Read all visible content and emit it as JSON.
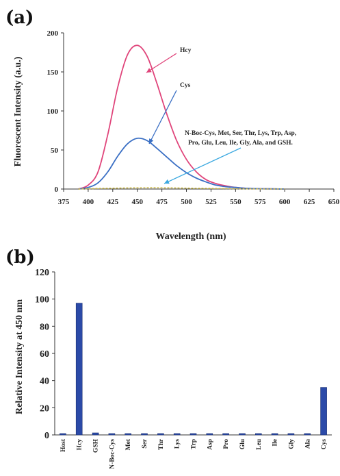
{
  "chart_data": [
    {
      "panel": "(a)",
      "type": "line",
      "xlabel": "Wavelength (nm)",
      "ylabel": "Fluorescent Intensity (a.u.)",
      "xlim": [
        375,
        650
      ],
      "ylim": [
        0,
        200
      ],
      "xticks": [
        "375",
        "400",
        "425",
        "450",
        "475",
        "500",
        "525",
        "550",
        "575",
        "600",
        "625",
        "650"
      ],
      "yticks": [
        "0",
        "50",
        "100",
        "150",
        "200"
      ],
      "series": [
        {
          "name": "Hcy",
          "color": "#e0457b",
          "x": [
            390,
            400,
            410,
            420,
            430,
            440,
            450,
            460,
            470,
            480,
            490,
            500,
            510,
            520,
            530,
            540,
            550,
            560,
            570,
            580,
            590,
            600
          ],
          "y": [
            0,
            5,
            22,
            70,
            130,
            172,
            184,
            170,
            135,
            96,
            62,
            38,
            22,
            12,
            7,
            4,
            2,
            1,
            0.5,
            0.3,
            0.2,
            0
          ]
        },
        {
          "name": "Cys",
          "color": "#3a6fc4",
          "x": [
            390,
            400,
            410,
            420,
            430,
            440,
            450,
            460,
            470,
            480,
            490,
            500,
            510,
            520,
            530,
            540,
            550,
            560,
            570,
            580,
            590,
            600
          ],
          "y": [
            0,
            2,
            8,
            22,
            42,
            58,
            65,
            62,
            52,
            41,
            30,
            21,
            14,
            9,
            5,
            3,
            2,
            1,
            0.5,
            0.3,
            0.2,
            0
          ]
        },
        {
          "name": "N-Boc-Cys, Met, Ser, Thr, Lys, Trp, Asp, Pro, Glu, Leu, Ile, Gly, Ala, and GSH.",
          "color": "#c9b84a",
          "x": [
            390,
            420,
            450,
            480,
            510,
            540,
            570,
            600
          ],
          "y": [
            0,
            1,
            1.5,
            1.5,
            1,
            0.6,
            0.2,
            0
          ]
        }
      ],
      "annotations": {
        "hcy": "Hcy",
        "cys": "Cys",
        "others_line1": "N-Boc-Cys, Met, Ser, Thr, Lys, Trp, Asp,",
        "others_line2": "Pro, Glu, Leu, Ile, Gly, Ala, and GSH."
      }
    },
    {
      "panel": "(b)",
      "type": "bar",
      "ylabel": "Relative Intensity at 450 nm",
      "ylim": [
        0,
        120
      ],
      "yticks": [
        "0",
        "20",
        "40",
        "60",
        "80",
        "100",
        "120"
      ],
      "color": "#2b4aa8",
      "categories": [
        "Host",
        "Hcy",
        "GSH",
        "N-Boc-Cys",
        "Met",
        "Ser",
        "Thr",
        "Lys",
        "Trp",
        "Asp",
        "Pro",
        "Glu",
        "Leu",
        "Ile",
        "Gly",
        "Ala",
        "Cys"
      ],
      "values": [
        1,
        97,
        1.5,
        1,
        1,
        1,
        1,
        1,
        1,
        1,
        1,
        1,
        1,
        1,
        1,
        1,
        35
      ]
    }
  ]
}
